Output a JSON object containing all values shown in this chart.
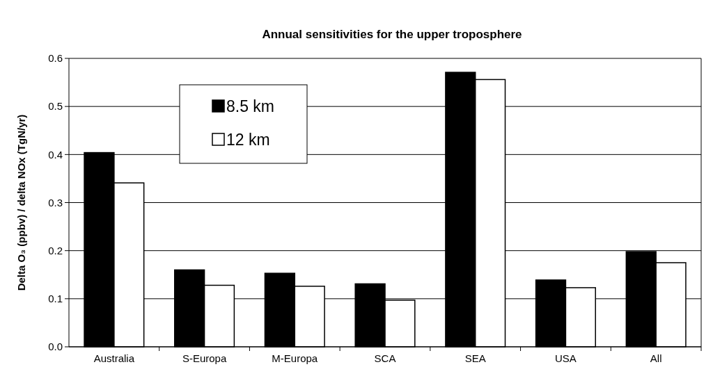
{
  "chart_data": {
    "type": "bar",
    "title": "Annual sensitivities for the upper troposphere",
    "ylabel": "Delta O₃ (ppbv) / delta NOx (TgN/yr)",
    "categories": [
      "Australia",
      "S-Europa",
      "M-Europa",
      "SCA",
      "SEA",
      "USA",
      "All"
    ],
    "series": [
      {
        "name": "8.5 km",
        "color": "#000000",
        "values": [
          0.404,
          0.16,
          0.153,
          0.131,
          0.571,
          0.139,
          0.198
        ]
      },
      {
        "name": "12 km",
        "color": "#ffffff",
        "values": [
          0.341,
          0.128,
          0.126,
          0.097,
          0.556,
          0.123,
          0.175
        ]
      }
    ],
    "ylim": [
      0,
      0.6
    ],
    "yticks": [
      {
        "value": 0,
        "label": "0.0"
      },
      {
        "value": 0.1,
        "label": "0.1"
      },
      {
        "value": 0.2,
        "label": "0.2"
      },
      {
        "value": 0.3,
        "label": "0.3"
      },
      {
        "value": 0.4,
        "label": "0.4"
      },
      {
        "value": 0.5,
        "label": "0.5"
      },
      {
        "value": 0.6,
        "label": "0.6"
      }
    ],
    "grid": "y",
    "legend": "top left"
  }
}
